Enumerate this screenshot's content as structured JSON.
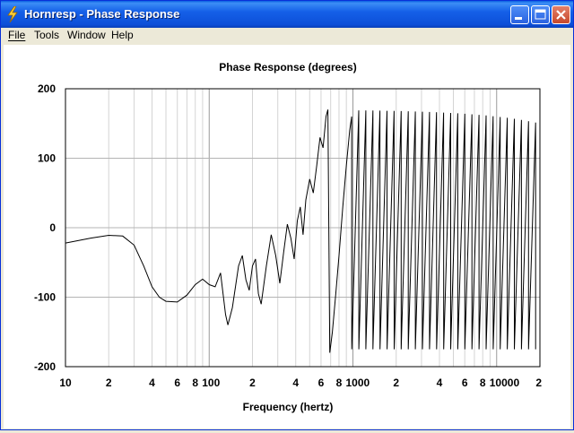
{
  "window": {
    "title": "Hornresp - Phase Response",
    "accent": "#0a5fe0",
    "icon": "lightning-bolt-icon"
  },
  "menu": [
    {
      "label": "File",
      "underline": "F"
    },
    {
      "label": "Tools",
      "underline": "T"
    },
    {
      "label": "Window",
      "underline": "W"
    },
    {
      "label": "Help",
      "underline": "H"
    }
  ],
  "chart_data": {
    "type": "line",
    "title": "Phase Response (degrees)",
    "xlabel": "Frequency (hertz)",
    "ylabel": "",
    "x_scale": "log",
    "xlim": [
      10,
      20000
    ],
    "ylim": [
      -200,
      200
    ],
    "x_tick_labels": [
      "10",
      "2",
      "4",
      "6",
      "8",
      "100",
      "2",
      "4",
      "6",
      "8",
      "1000",
      "2",
      "4",
      "6",
      "8",
      "10000",
      "2"
    ],
    "y_tick_labels": [
      "200",
      "100",
      "0",
      "-100",
      "-200"
    ],
    "grid": true,
    "legend": "none",
    "series": [
      {
        "color": "#000000",
        "points": [
          [
            10,
            -22
          ],
          [
            15,
            -15
          ],
          [
            20,
            -11
          ],
          [
            25,
            -12
          ],
          [
            30,
            -25
          ],
          [
            35,
            -55
          ],
          [
            40,
            -85
          ],
          [
            45,
            -100
          ],
          [
            50,
            -106
          ],
          [
            60,
            -107
          ],
          [
            70,
            -97
          ],
          [
            80,
            -82
          ],
          [
            90,
            -74
          ],
          [
            100,
            -82
          ],
          [
            110,
            -85
          ],
          [
            120,
            -65
          ],
          [
            130,
            -125
          ],
          [
            135,
            -140
          ],
          [
            145,
            -115
          ],
          [
            160,
            -55
          ],
          [
            170,
            -40
          ],
          [
            180,
            -75
          ],
          [
            190,
            -90
          ],
          [
            200,
            -55
          ],
          [
            210,
            -45
          ],
          [
            220,
            -95
          ],
          [
            230,
            -110
          ],
          [
            250,
            -55
          ],
          [
            270,
            -10
          ],
          [
            290,
            -40
          ],
          [
            310,
            -80
          ],
          [
            330,
            -35
          ],
          [
            350,
            5
          ],
          [
            370,
            -15
          ],
          [
            390,
            -45
          ],
          [
            410,
            10
          ],
          [
            430,
            30
          ],
          [
            450,
            -10
          ],
          [
            470,
            40
          ],
          [
            500,
            70
          ],
          [
            530,
            50
          ],
          [
            560,
            90
          ],
          [
            590,
            130
          ],
          [
            620,
            115
          ],
          [
            650,
            160
          ],
          [
            670,
            170
          ]
        ]
      }
    ]
  }
}
